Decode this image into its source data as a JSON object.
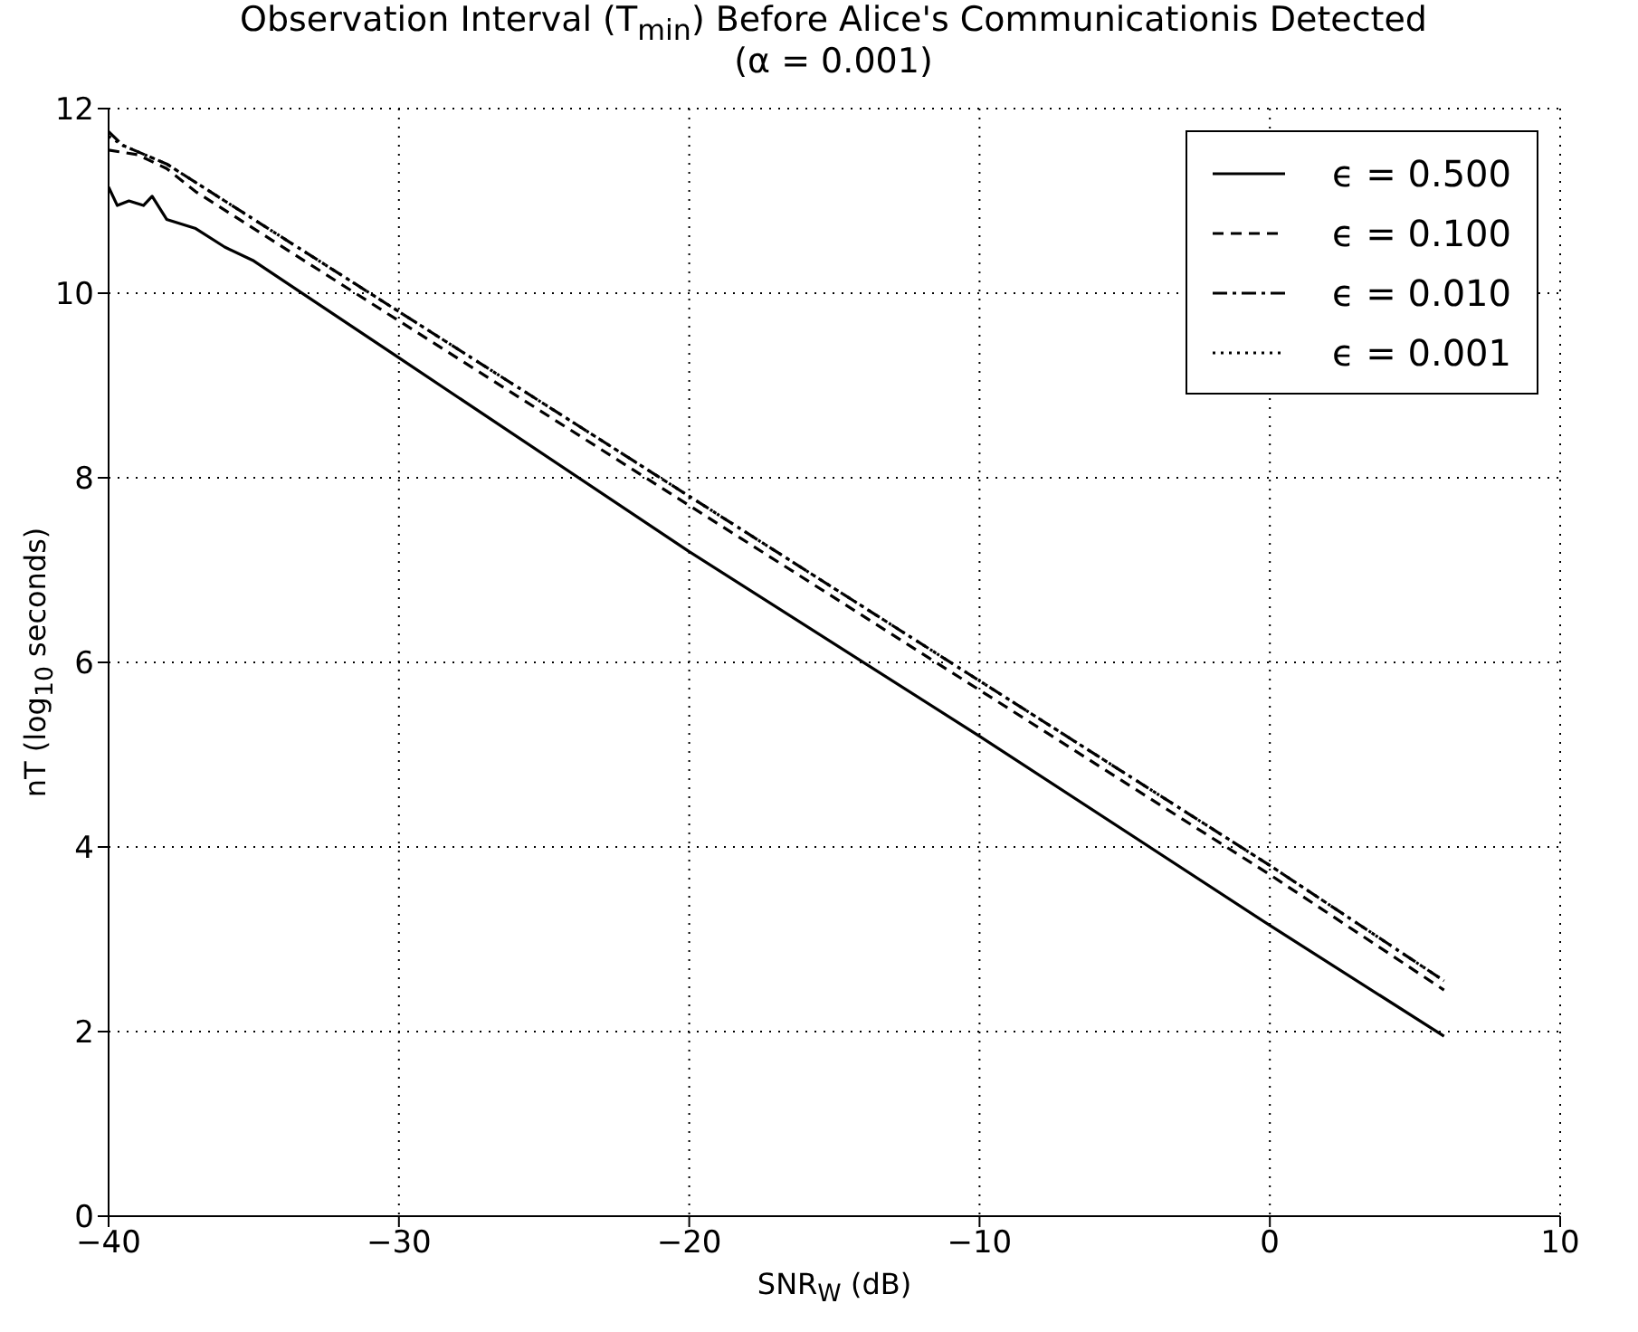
{
  "chart_data": {
    "type": "line",
    "title": "Observation Interval (T$_{min}$) Before Alice's Communicationis Detected",
    "subtitle": "(α = 0.001)",
    "xlabel": "SNR$_{W}$ (dB)",
    "ylabel": "nT (log$_{10}$ seconds)",
    "xlim": [
      -40,
      10
    ],
    "xticks": [
      {
        "value": -40,
        "label": "−40"
      },
      {
        "value": -30,
        "label": "−30"
      },
      {
        "value": -20,
        "label": "−20"
      },
      {
        "value": -10,
        "label": "−10"
      },
      0,
      10
    ],
    "ylim": [
      0,
      12
    ],
    "yticks": [
      0,
      2,
      4,
      6,
      8,
      10,
      12
    ],
    "grid": true,
    "legend": "top right",
    "marker": "none",
    "series": [
      {
        "name": "ϵ = 0.500",
        "color": "#000000",
        "line_style": "solid",
        "x": [
          -40,
          -39.7,
          -39.3,
          -38.8,
          -38.5,
          -38,
          -37,
          -36,
          -35,
          -30,
          -20,
          -10,
          0,
          6
        ],
        "values": [
          11.15,
          10.95,
          11.0,
          10.95,
          11.05,
          10.8,
          10.7,
          10.5,
          10.35,
          9.3,
          7.2,
          5.2,
          3.15,
          1.95
        ]
      },
      {
        "name": "ϵ = 0.100",
        "color": "#000000",
        "line_style": "dashed",
        "x": [
          -40,
          -39,
          -38,
          -37,
          -35,
          -30,
          -20,
          -10,
          0,
          6
        ],
        "values": [
          11.55,
          11.5,
          11.35,
          11.1,
          10.7,
          9.7,
          7.7,
          5.7,
          3.7,
          2.45
        ]
      },
      {
        "name": "ϵ = 0.010",
        "color": "#000000",
        "line_style": "dashdot",
        "x": [
          -40,
          -39.5,
          -38,
          -36,
          -35,
          -30,
          -20,
          -10,
          0,
          6
        ],
        "values": [
          11.75,
          11.6,
          11.4,
          11.0,
          10.8,
          9.8,
          7.8,
          5.8,
          3.8,
          2.55
        ]
      },
      {
        "name": "ϵ = 0.001",
        "color": "#000000",
        "line_style": "dotted",
        "x": [
          -40,
          -39.5,
          -38,
          -36,
          -35,
          -30,
          -20,
          -10,
          0,
          6
        ],
        "values": [
          11.7,
          11.6,
          11.4,
          11.0,
          10.8,
          9.8,
          7.8,
          5.8,
          3.8,
          2.55
        ]
      }
    ]
  }
}
